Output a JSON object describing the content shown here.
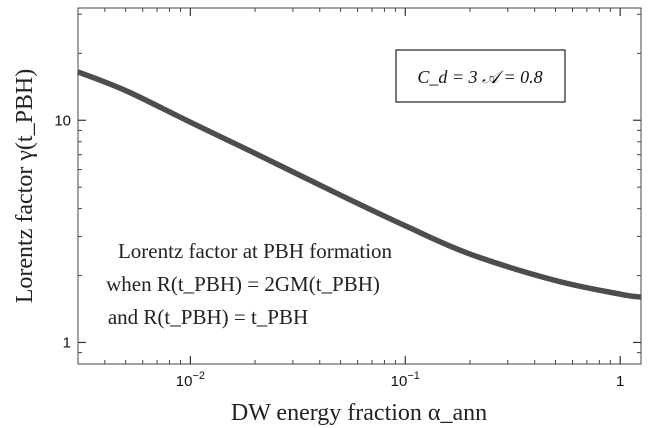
{
  "chart_data": {
    "type": "line",
    "title": "",
    "xlabel": "DW energy fraction α_ann",
    "ylabel": "Lorentz factor γ(t_PBH)",
    "xscale": "log",
    "yscale": "log",
    "xlim": [
      0.003,
      1.25
    ],
    "ylim": [
      0.8,
      32
    ],
    "xticks": [
      {
        "value": 0.01,
        "base": "10",
        "exp": "−2"
      },
      {
        "value": 0.1,
        "base": "10",
        "exp": "−1"
      },
      {
        "value": 1,
        "base": "1",
        "exp": ""
      }
    ],
    "yticks": [
      {
        "value": 1,
        "label": "1"
      },
      {
        "value": 10,
        "label": "10"
      }
    ],
    "grid": false,
    "legend_box": {
      "placement": "top-right",
      "params": "C_d = 3    𝒜 = 0.8"
    },
    "annotation": {
      "lines": [
        "Lorentz factor at PBH formation",
        "when R(t_PBH) = 2GM(t_PBH)",
        "and R(t_PBH) = t_PBH"
      ]
    },
    "series": [
      {
        "color": "#4d4d4d",
        "x": [
          0.003,
          0.005,
          0.01,
          0.02,
          0.05,
          0.1,
          0.2,
          0.5,
          1.0,
          1.25
        ],
        "y": [
          16.5,
          13.6,
          9.8,
          7.1,
          4.6,
          3.35,
          2.5,
          1.9,
          1.65,
          1.6
        ]
      }
    ]
  }
}
